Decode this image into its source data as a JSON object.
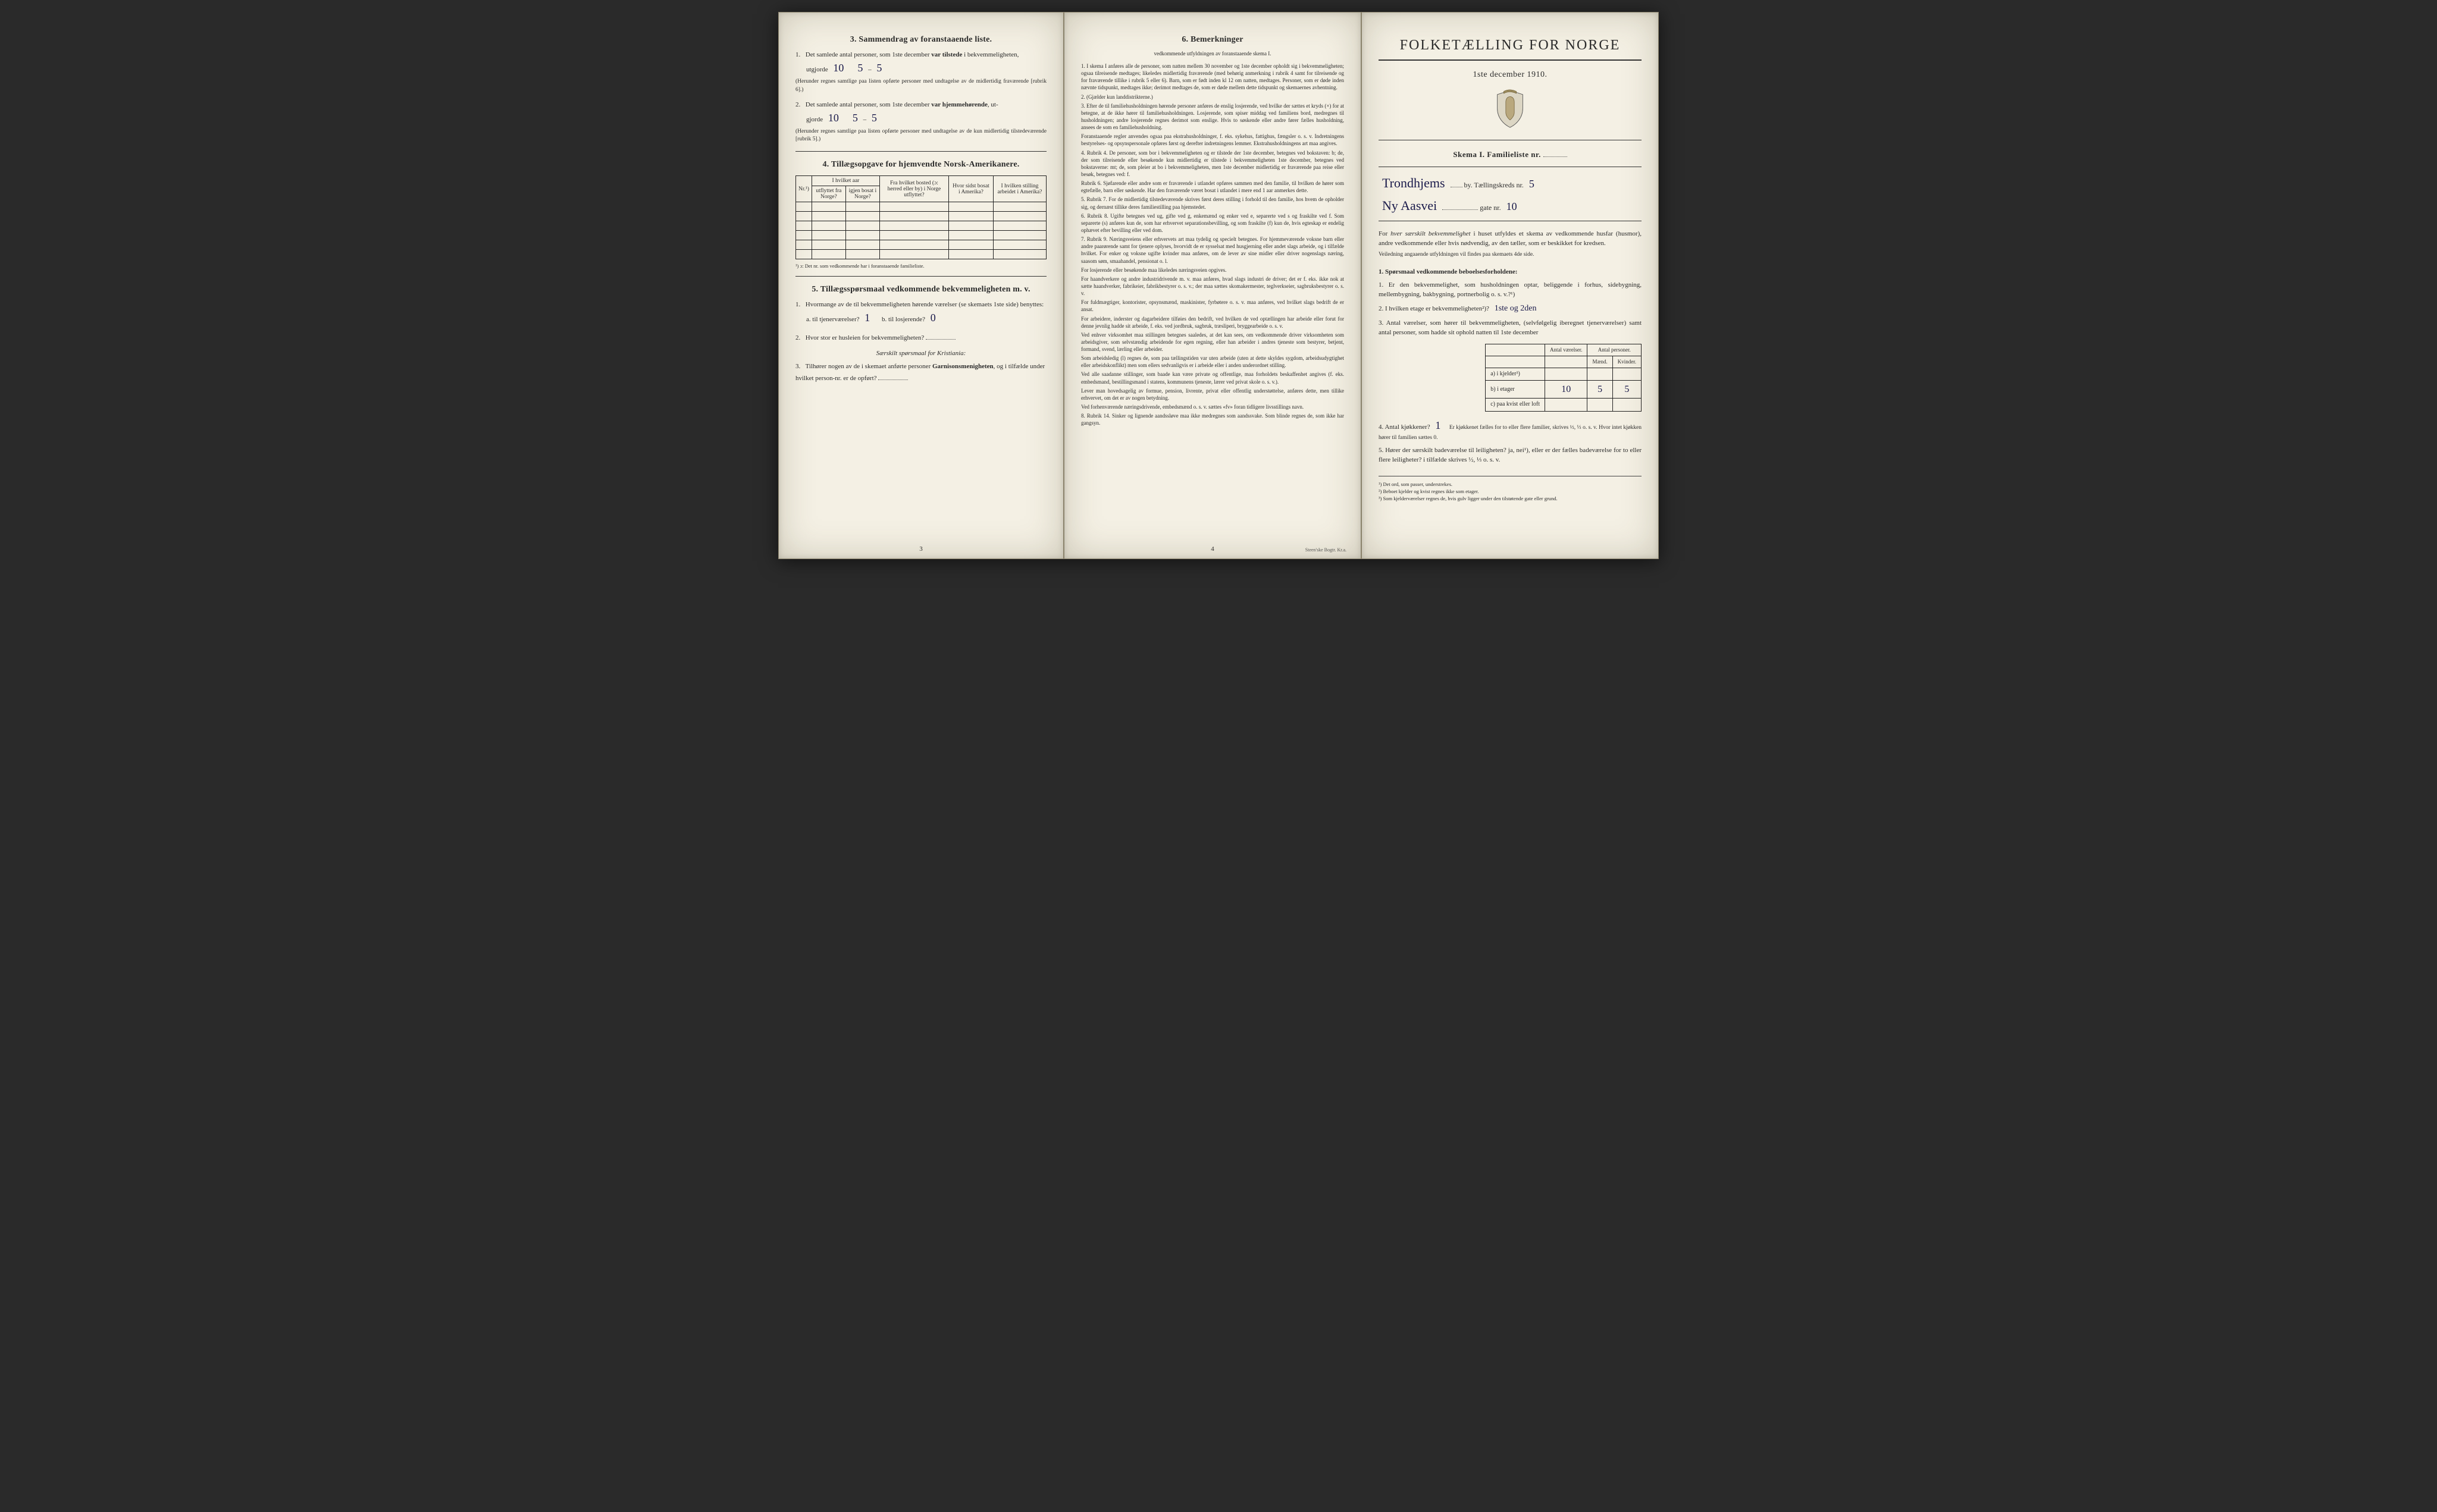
{
  "page3": {
    "sec3": {
      "heading_num": "3.",
      "heading": "Sammendrag av foranstaaende liste.",
      "q1_pre": "Det samlede antal personer, som 1ste december",
      "q1_bold": "var tilstede",
      "q1_post": "i bekvemmeligheten,",
      "utgjorde": "utgjorde",
      "q1_val": "10",
      "q1_val_m": "5",
      "q1_val_k": "5",
      "q1_note": "(Herunder regnes samtlige paa listen opførte personer med undtagelse av de midlertidig fraværende [rubrik 6].)",
      "q2_pre": "Det samlede antal personer, som 1ste december",
      "q2_bold": "var hjemmehørende",
      "q2_post": ", ut-",
      "q2_line2": "gjorde",
      "q2_val": "10",
      "q2_val_m": "5",
      "q2_val_k": "5",
      "q2_note": "(Herunder regnes samtlige paa listen opførte personer med undtagelse av de kun midlertidig tilstedeværende [rubrik 5].)"
    },
    "sec4": {
      "heading_num": "4.",
      "heading": "Tillægsopgave for hjemvendte Norsk-Amerikanere.",
      "col_nr": "Nr.¹)",
      "col_aar": "I hvilket aar",
      "col_aar_a": "utflyttet fra Norge?",
      "col_aar_b": "igjen bosat i Norge?",
      "col_bosted": "Fra hvilket bosted (ɔ: herred eller by) i Norge utflyttet?",
      "col_sidst": "Hvor sidst bosat i Amerika?",
      "col_stilling": "I hvilken stilling arbeidet i Amerika?",
      "footnote": "¹) ɔ: Det nr. som vedkommende har i foranstaaende familieliste."
    },
    "sec5": {
      "heading_num": "5.",
      "heading": "Tillægsspørsmaal vedkommende bekvemmeligheten m. v.",
      "q1": "Hvormange av de til bekvemmeligheten hørende værelser (se skemaets 1ste side) benyttes:",
      "q1a_label": "a. til tjenerværelser?",
      "q1a_val": "1",
      "q1b_label": "b. til losjerende?",
      "q1b_val": "0",
      "q2": "Hvor stor er husleien for bekvemmeligheten?",
      "q2_blank": "",
      "kristiania": "Særskilt spørsmaal for Kristiania:",
      "q3_pre": "Tilhører nogen av de i skemaet anførte personer",
      "q3_bold": "Garnisonsmenigheten",
      "q3_post": ", og i tilfælde under hvilket person-nr. er de opført?",
      "q3_blank": ""
    },
    "pagenum": "3"
  },
  "page4": {
    "heading_num": "6.",
    "heading": "Bemerkninger",
    "subcaption": "vedkommende utfyldningen av foranstaaende skema I.",
    "paras": [
      "1. I skema I anføres alle de personer, som natten mellem 30 november og 1ste december opholdt sig i bekvemmeligheten; ogsaa tilreisende medtages; likeledes midlertidig fraværende (med behørig anmerkning i rubrik 4 samt for tilreisende og for fraværende tillike i rubrik 5 eller 6). Barn, som er født inden kl 12 om natten, medtages. Personer, som er døde inden nævnte tidspunkt, medtages ikke; derimot medtages de, som er døde mellem dette tidspunkt og skemaernes avhentning.",
      "2. (Gjælder kun landdistrikterne.)",
      "3. Efter de til familiehusholdningen hørende personer anføres de enslig losjerende, ved hvilke der sættes et kryds (×) for at betegne, at de ikke hører til familiehusholdningen. Losjerende, som spiser middag ved familiens bord, medregnes til husholdningen; andre losjerende regnes derimot som enslige. Hvis to søskende eller andre fører fælles husholdning, ansees de som en familiehusholdning.",
      "Foranstaaende regler anvendes ogsaa paa ekstrahusholdninger, f. eks. sykehus, fattighus, fængsler o. s. v. Indretningens bestyrelses- og opsynspersonale opføres først og derefter indretningens lemmer. Ekstrahusholdningens art maa angives.",
      "4. Rubrik 4. De personer, som bor i bekvemmeligheten og er tilstede der 1ste december, betegnes ved bokstaven: b; de, der som tilreisende eller besøkende kun midlertidig er tilstede i bekvemmeligheten 1ste december, betegnes ved bokstaverne: mt; de, som pleier at bo i bekvemmeligheten, men 1ste december midlertidig er fraværende paa reise eller besøk, betegnes ved: f.",
      "Rubrik 6. Sjøfarende eller andre som er fraværende i utlandet opføres sammen med den familie, til hvilken de hører som egtefælle, barn eller søskende. Har den fraværende været bosat i utlandet i mere end 1 aar anmerkes dette.",
      "5. Rubrik 7. For de midlertidig tilstedeværende skrives først deres stilling i forhold til den familie, hos hvem de opholder sig, og dernæst tillike deres familiestilling paa hjemstedet.",
      "6. Rubrik 8. Ugifte betegnes ved ug, gifte ved g, enkemænd og enker ved e, separerte ved s og fraskilte ved f. Som separerte (s) anføres kun de, som har erhvervet separationsbevilling, og som fraskilte (f) kun de, hvis egteskap er endelig ophævet efter bevilling eller ved dom.",
      "7. Rubrik 9. Næringsveiens eller erhvervets art maa tydelig og specielt betegnes. For hjemmeværende voksne barn eller andre paarørende samt for tjenere oplyses, hvorvidt de er sysselsat med husgjerning eller andet slags arbeide, og i tilfælde hvilket. For enker og voksne ugifte kvinder maa anføres, om de lever av sine midler eller driver nogenslags næring, saasom søm, smaahandel, pensionat o. l.",
      "For losjerende eller besøkende maa likeledes næringsveien opgives.",
      "For haandverkere og andre industridrivende m. v. maa anføres, hvad slags industri de driver; det er f. eks. ikke nok at sætte haandverker, fabrikeier, fabrikbestyrer o. s. v.; der maa sættes skomakermester, teglverkseier, sagbruksbestyrer o. s. v.",
      "For fuldmægtiger, kontorister, opsynsmænd, maskinister, fyrbøtere o. s. v. maa anføres, ved hvilket slags bedrift de er ansat.",
      "For arbeidere, inderster og dagarbeidere tilføies den bedrift, ved hvilken de ved optællingen har arbeide eller forut for denne jevnlig hadde sit arbeide, f. eks. ved jordbruk, sagbruk, træsliperi, bryggearbeide o. s. v.",
      "Ved enhver virksomhet maa stillingen betegnes saaledes, at det kan sees, om vedkommende driver virksomheten som arbeidsgiver, som selvstændig arbeidende for egen regning, eller han arbeider i andres tjeneste som bestyrer, betjent, formand, svend, lærling eller arbeider.",
      "Som arbeidsledig (l) regnes de, som paa tællingstiden var uten arbeide (uten at dette skyldes sygdom, arbeidsudygtighet eller arbeidskonflikt) men som ellers sedvanligvis er i arbeide eller i anden underordnet stilling.",
      "Ved alle saadanne stillinger, som baade kan være private og offentlige, maa forholdets beskaffenhet angives (f. eks. embedsmand, bestillingsmand i statens, kommunens tjeneste, lærer ved privat skole o. s. v.).",
      "Lever man hovedsagelig av formue, pension, livrente, privat eller offentlig understøttelse, anføres dette, men tillike erhvervet, om det er av nogen betydning.",
      "Ved forhenværende næringsdrivende, embedsmænd o. s. v. sættes «fv» foran tidligere livsstillings navn.",
      "8. Rubrik 14. Sinker og lignende aandssløve maa ikke medregnes som aandssvake. Som blinde regnes de, som ikke har gangsyn."
    ],
    "pagenum": "4",
    "printer": "Steen'ske Bogtr. Kr.a."
  },
  "page1": {
    "title": "FOLKETÆLLING FOR NORGE",
    "subtitle": "1ste december 1910.",
    "skema": "Skema I.   Familieliste nr.",
    "skema_nr": "",
    "by_hand": "Trondhjems",
    "by_label": "by.  Tællingskreds nr.",
    "kreds_nr": "5",
    "gate_hand": "Ny Aasvei",
    "gate_label": "gate nr.",
    "gate_nr": "10",
    "intro1_pre": "For",
    "intro1_it": "hver særskilt bekvemmelighet",
    "intro1_post": "i huset utfyldes et skema av vedkommende husfar (husmor), andre vedkommende eller hvis nødvendig, av den tæller, som er beskikket for kredsen.",
    "intro2": "Veiledning angaaende utfyldningen vil findes paa skemaets 4de side.",
    "q_heading": "1. Spørsmaal vedkommende beboelsesforholdene:",
    "q1": "1. Er den bekvemmelighet, som husholdningen optar, beliggende i forhus, sidebygning, mellembygning, bakbygning, portnerbolig o. s. v.?¹)",
    "q2": "2. I hvilken etage er bekvemmeligheten²)?",
    "q2_val": "1ste og 2den",
    "q3": "3. Antal værelser, som hører til bekvemmeligheten, (selvfølgelig iberegnet tjenerværelser) samt antal personer, som hadde sit ophold natten til 1ste december",
    "rtbl": {
      "h1": "Antal værelser.",
      "h2": "Antal personer.",
      "h2a": "Mænd.",
      "h2b": "Kvinder.",
      "row_a": "a) i kjelder³)",
      "row_b": "b) i etager",
      "row_c": "c) paa kvist eller loft",
      "b_vaer": "10",
      "b_m": "5",
      "b_k": "5"
    },
    "q4_pre": "4. Antal kjøkkener?",
    "q4_val": "1",
    "q4_post": "Er kjøkkenet fælles for to eller flere familier, skrives ½, ⅓ o. s. v. Hvor intet kjøkken hører til familien sættes 0.",
    "q5": "5. Hører der særskilt badeværelse til leiligheten? ja, nei¹), eller er der fælles badeværelse for to eller flere leiligheter? i tilfælde skrives ½, ⅓ o. s. v.",
    "fn1": "¹) Det ord, som passer, understrekes.",
    "fn2": "²) Beboet kjelder og kvist regnes ikke som etager.",
    "fn3": "³) Som kjelderværelser regnes de, hvis gulv ligger under den tilstøtende gate eller grund."
  },
  "colors": {
    "paper": "#f4f0e4",
    "ink": "#2b2b2b",
    "hand": "#1a1a4a",
    "border": "#8a826b"
  }
}
